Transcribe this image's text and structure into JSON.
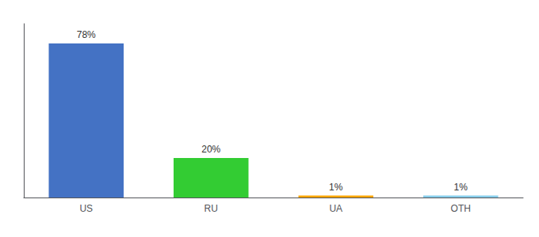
{
  "chart_data": {
    "type": "bar",
    "categories": [
      "US",
      "RU",
      "UA",
      "OTH"
    ],
    "values": [
      78,
      20,
      1,
      1
    ],
    "value_labels": [
      "78%",
      "20%",
      "1%",
      "1%"
    ],
    "colors": [
      "#4472C4",
      "#33CC33",
      "#FFA500",
      "#87CEEB"
    ],
    "ylim": [
      0,
      88
    ],
    "data_labels": true,
    "tick_labels": "x",
    "grid": false
  }
}
